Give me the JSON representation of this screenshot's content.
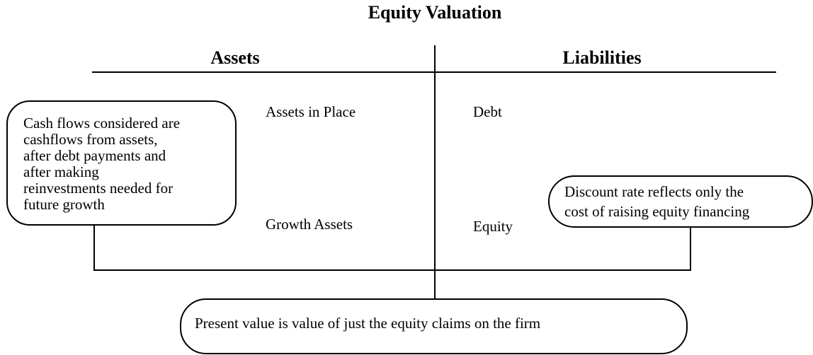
{
  "title": "Equity Valuation",
  "headers": {
    "left": "Assets",
    "right": "Liabilities"
  },
  "left_items": [
    "Assets in Place",
    "Growth Assets"
  ],
  "right_items": [
    "Debt",
    "Equity"
  ],
  "cash_flow_note": {
    "lines": [
      "Cash flows considered are",
      "cashflows from assets,",
      "after debt payments and",
      "after making",
      "reinvestments needed for",
      "future growth"
    ]
  },
  "discount_note": {
    "lines": [
      "Discount rate reflects only the",
      "cost of raising equity financing"
    ]
  },
  "present_value_note": "Present value is value of just the equity claims on the firm"
}
